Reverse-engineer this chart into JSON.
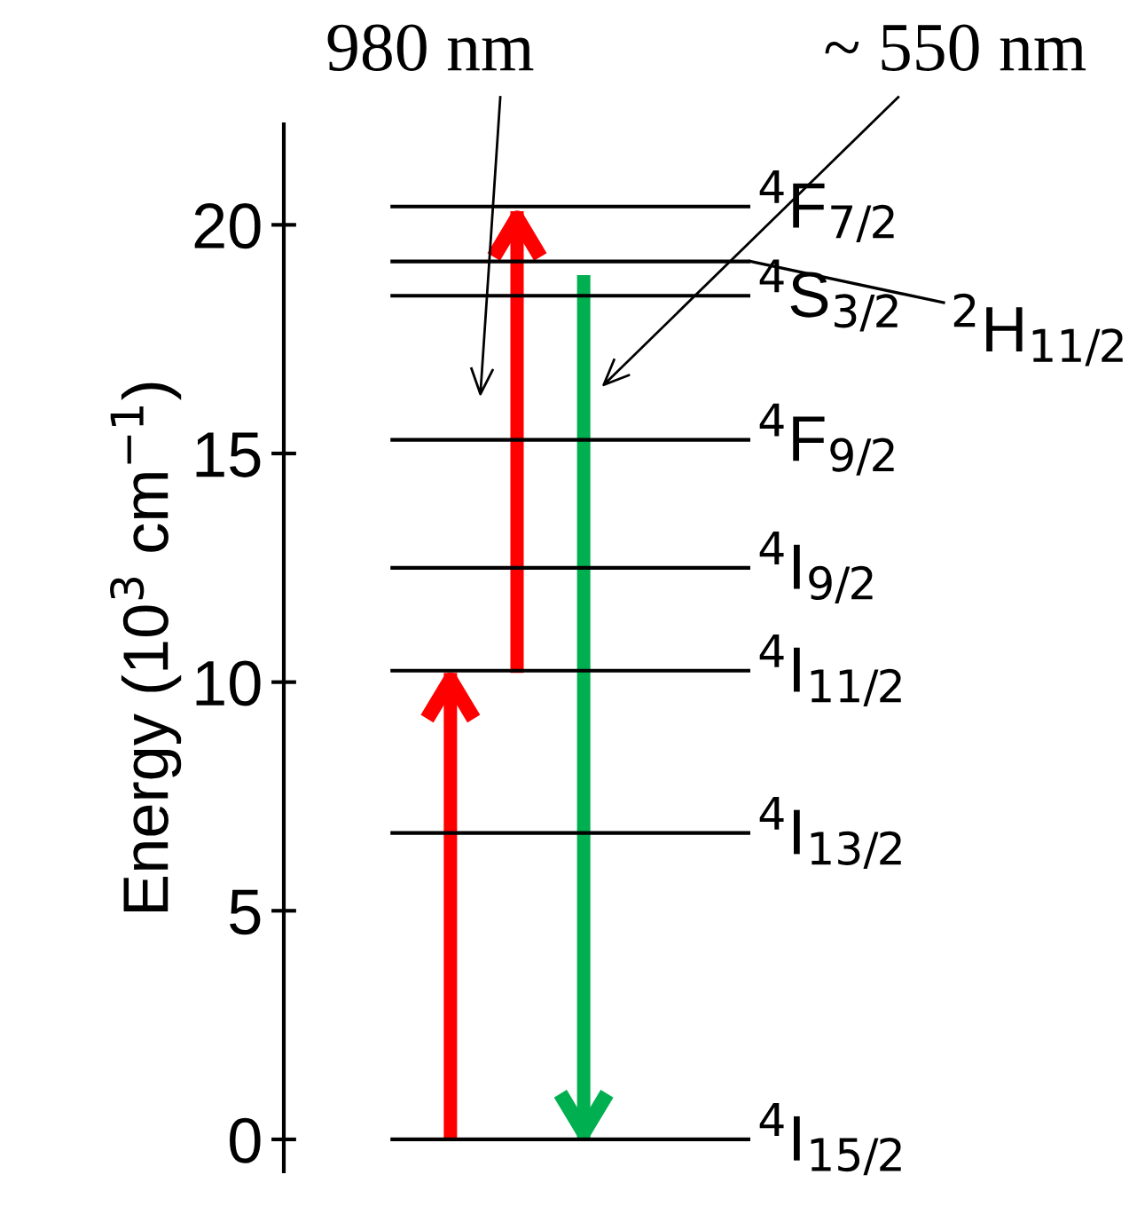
{
  "chart_data": {
    "type": "bar",
    "ylabel": "Energy (10$^{3}$ cm$^{−1}$)",
    "categories": [
      null,
      null,
      null
    ],
    "base": [
      0,
      10.2,
      18.9
    ],
    "values": [
      10.2,
      10.1,
      -18.9
    ],
    "colors": [
      "#ff0000",
      "#ff0000",
      "#00b050"
    ],
    "ylim": [
      -0.7,
      22.2
    ],
    "yticks": [
      0,
      5,
      10,
      15,
      20
    ],
    "tick_labels": "y",
    "grid": false,
    "ref_lines": [
      {
        "axis": "y",
        "value": 0,
        "label": "$^{4}$I$_{15/2}$",
        "color": "#000000"
      },
      {
        "axis": "y",
        "value": 6.7,
        "label": "$^{4}$I$_{13/2}$",
        "color": "#000000"
      },
      {
        "axis": "y",
        "value": 10.25,
        "label": "$^{4}$I$_{11/2}$",
        "color": "#000000"
      },
      {
        "axis": "y",
        "value": 12.5,
        "label": "$^{4}$I$_{9/2}$",
        "color": "#000000"
      },
      {
        "axis": "y",
        "value": 15.3,
        "label": "$^{4}$F$_{9/2}$",
        "color": "#000000"
      },
      {
        "axis": "y",
        "value": 18.45,
        "label": "$^{4}$S$_{3/2}$",
        "color": "#000000"
      },
      {
        "axis": "y",
        "value": 19.2,
        "label": "$^{2}$H$_{11/2}$",
        "color": "#000000"
      },
      {
        "axis": "y",
        "value": 20.4,
        "label": "$^{4}$F$_{7/2}$",
        "color": "#000000"
      }
    ],
    "annotations": [
      "980 nm",
      "~ 550 nm"
    ]
  }
}
